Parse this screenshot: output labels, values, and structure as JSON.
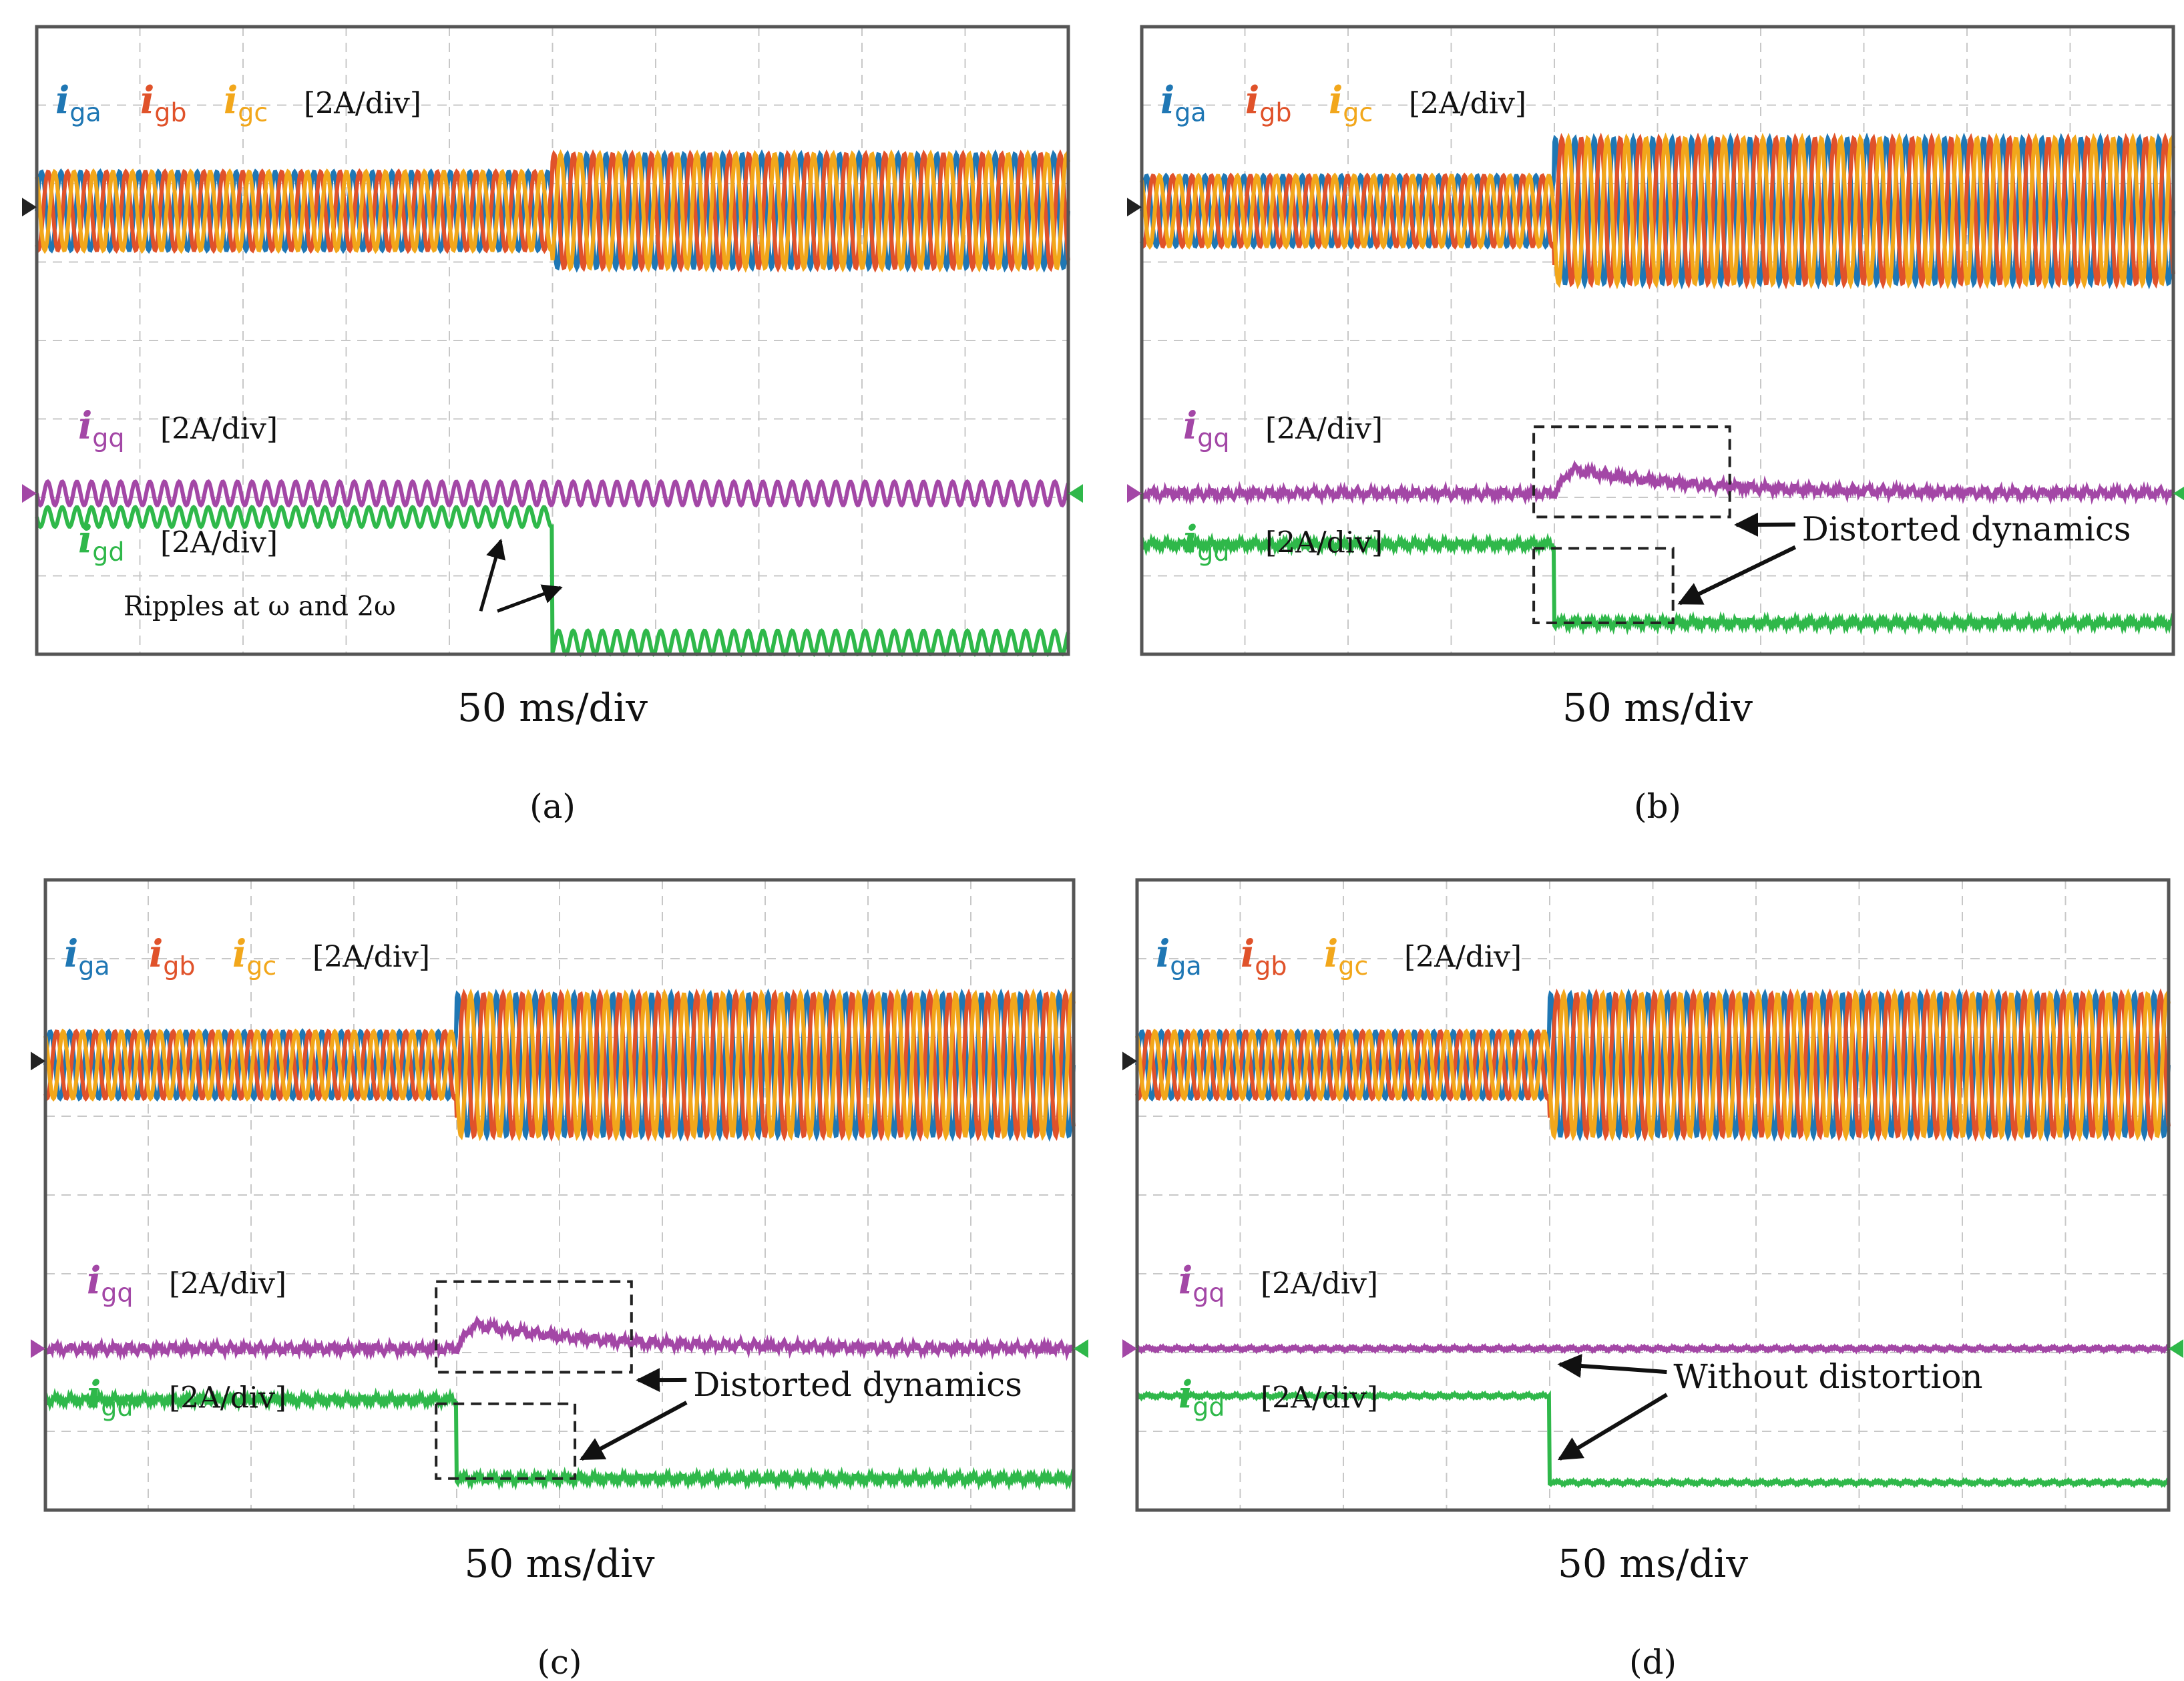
{
  "colors": {
    "iga": "#1f77b4",
    "igb": "#e0522a",
    "igc": "#f2a71b",
    "igq": "#a347a6",
    "igd": "#2fb84a",
    "grid": "#c8c8c8",
    "frame": "#555555"
  },
  "chart_data": [
    {
      "type": "line",
      "caption": "(a)",
      "xlabel": "50 ms/div",
      "scale_label": "[2A/div]",
      "series_labels": {
        "iga": {
          "sym": "i",
          "sub": "ga"
        },
        "igb": {
          "sym": "i",
          "sub": "gb"
        },
        "igc": {
          "sym": "i",
          "sub": "gc"
        },
        "igq": {
          "sym": "i",
          "sub": "gq"
        },
        "igd": {
          "sym": "i",
          "sub": "gd"
        }
      },
      "step_time_div": 5.0,
      "abc": {
        "pre_amp_div": 1.0,
        "post_amp_div": 1.45,
        "cycles_per_div": 5.3
      },
      "gq": {
        "pre_ripple_div": 0.3,
        "post_ripple_div": 0.3
      },
      "gd": {
        "pre_ripple_div": 0.25,
        "post_ripple_div": 0.3,
        "step_div": 1.6
      },
      "annotations": [
        {
          "text": "Ripples at ω and 2ω"
        }
      ]
    },
    {
      "type": "line",
      "caption": "(b)",
      "xlabel": "50 ms/div",
      "scale_label": "[2A/div]",
      "series_labels": {
        "iga": {
          "sym": "i",
          "sub": "ga"
        },
        "igb": {
          "sym": "i",
          "sub": "gb"
        },
        "igc": {
          "sym": "i",
          "sub": "gc"
        },
        "igq": {
          "sym": "i",
          "sub": "gq"
        },
        "igd": {
          "sym": "i",
          "sub": "gd"
        }
      },
      "step_time_div": 4.0,
      "abc": {
        "pre_amp_div": 0.9,
        "post_amp_div": 1.85,
        "cycles_per_div": 5.3
      },
      "gq": {
        "pre_ripple_div": 0.08,
        "post_ripple_div": 0.08
      },
      "gd": {
        "pre_ripple_div": 0.07,
        "post_ripple_div": 0.07,
        "step_div": 1.0
      },
      "annotations": [
        {
          "text": "Distorted dynamics"
        }
      ]
    },
    {
      "type": "line",
      "caption": "(c)",
      "xlabel": "50 ms/div",
      "scale_label": "[2A/div]",
      "series_labels": {
        "iga": {
          "sym": "i",
          "sub": "ga"
        },
        "igb": {
          "sym": "i",
          "sub": "gb"
        },
        "igc": {
          "sym": "i",
          "sub": "gc"
        },
        "igq": {
          "sym": "i",
          "sub": "gq"
        },
        "igd": {
          "sym": "i",
          "sub": "gd"
        }
      },
      "step_time_div": 4.0,
      "abc": {
        "pre_amp_div": 0.85,
        "post_amp_div": 1.8,
        "cycles_per_div": 5.3
      },
      "gq": {
        "pre_ripple_div": 0.08,
        "post_ripple_div": 0.08
      },
      "gd": {
        "pre_ripple_div": 0.07,
        "post_ripple_div": 0.07,
        "step_div": 1.0
      },
      "annotations": [
        {
          "text": "Distorted dynamics"
        }
      ]
    },
    {
      "type": "line",
      "caption": "(d)",
      "xlabel": "50 ms/div",
      "scale_label": "[2A/div]",
      "series_labels": {
        "iga": {
          "sym": "i",
          "sub": "ga"
        },
        "igb": {
          "sym": "i",
          "sub": "gb"
        },
        "igc": {
          "sym": "i",
          "sub": "gc"
        },
        "igq": {
          "sym": "i",
          "sub": "gq"
        },
        "igd": {
          "sym": "i",
          "sub": "gd"
        }
      },
      "step_time_div": 4.0,
      "abc": {
        "pre_amp_div": 0.85,
        "post_amp_div": 1.8,
        "cycles_per_div": 5.3
      },
      "gq": {
        "pre_ripple_div": 0.03,
        "post_ripple_div": 0.03
      },
      "gd": {
        "pre_ripple_div": 0.03,
        "post_ripple_div": 0.03,
        "step_div": 1.1
      },
      "annotations": [
        {
          "text": "Without distortion"
        }
      ]
    }
  ]
}
